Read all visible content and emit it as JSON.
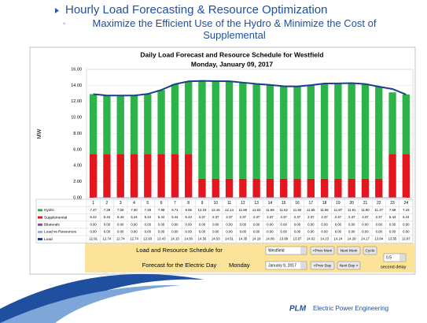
{
  "header": {
    "title": "Hourly Load Forecasting & Resource Optimization",
    "subtitle": "Maximize the Efficient Use of the Hydro & Minimize the Cost of Supplemental"
  },
  "chart_data": {
    "type": "bar",
    "title": "Daily Load Forecast and Resource Schedule for Westfield",
    "subtitle": "Monday, January 09, 2017",
    "y_label": "MW",
    "categories": [
      "1",
      "2",
      "3",
      "4",
      "5",
      "6",
      "7",
      "8",
      "9",
      "10",
      "11",
      "12",
      "13",
      "14",
      "15",
      "16",
      "17",
      "18",
      "19",
      "20",
      "21",
      "22",
      "23",
      "24"
    ],
    "ylim": [
      0,
      16
    ],
    "yticks": [
      {
        "value": 0,
        "label": "0.00"
      },
      {
        "value": 2,
        "label": "2.00"
      },
      {
        "value": 4,
        "label": "4.00"
      },
      {
        "value": 6,
        "label": "6.00"
      },
      {
        "value": 8,
        "label": "8.00"
      },
      {
        "value": 10,
        "label": "10.00"
      },
      {
        "value": 12,
        "label": "12.00"
      },
      {
        "value": 14,
        "label": "14.00"
      },
      {
        "value": 16,
        "label": "16.00"
      }
    ],
    "grid": true,
    "series": [
      {
        "name": "Hydro",
        "mark": "bar",
        "color": "#2db34a",
        "values": [
          7.47,
          7.29,
          7.26,
          7.3,
          7.48,
          7.98,
          8.71,
          9.06,
          12.19,
          12.16,
          12.14,
          11.98,
          11.81,
          11.69,
          11.52,
          11.5,
          11.65,
          11.86,
          11.87,
          11.91,
          11.8,
          11.47,
          7.69,
          7.43
        ],
        "value_labels": [
          "7.47",
          "7.29",
          "7.26",
          "7.30",
          "7.48",
          "7.98",
          "8.71",
          "9.06",
          "12.19",
          "12.16",
          "12.14",
          "11.98",
          "11.81",
          "11.69",
          "11.52",
          "11.50",
          "11.65",
          "11.86",
          "11.87",
          "11.91",
          "11.80",
          "11.47",
          "7.69",
          "7.43"
        ]
      },
      {
        "name": "Supplemental",
        "mark": "bar",
        "color": "#e3161d",
        "values": [
          5.44,
          5.44,
          5.44,
          5.44,
          5.44,
          5.44,
          5.44,
          5.44,
          2.37,
          2.37,
          2.37,
          2.37,
          2.37,
          2.37,
          2.37,
          2.37,
          2.37,
          2.37,
          2.37,
          2.37,
          2.37,
          2.37,
          5.44,
          5.44
        ],
        "value_labels": [
          "5.44",
          "5.44",
          "5.44",
          "5.44",
          "5.44",
          "5.44",
          "5.44",
          "5.44",
          "2.37",
          "2.37",
          "2.37",
          "2.37",
          "2.37",
          "2.37",
          "2.37",
          "2.37",
          "2.37",
          "2.37",
          "2.37",
          "2.37",
          "2.37",
          "2.37",
          "5.44",
          "5.44"
        ]
      },
      {
        "name": "Bilaterals",
        "mark": "line",
        "color": "#7a4fa0",
        "values": [
          0,
          0,
          0,
          0,
          0,
          0,
          0,
          0,
          0,
          0,
          0,
          0,
          0,
          0,
          0,
          0,
          0,
          0,
          0,
          0,
          0,
          0,
          0,
          0
        ],
        "value_labels": [
          "0.00",
          "0.00",
          "0.00",
          "0.00",
          "0.00",
          "0.00",
          "0.00",
          "0.00",
          "0.00",
          "0.00",
          "0.00",
          "0.00",
          "0.00",
          "0.00",
          "0.00",
          "0.00",
          "0.00",
          "0.00",
          "0.00",
          "0.00",
          "0.00",
          "0.00",
          "0.00",
          "0.00"
        ]
      },
      {
        "name": "Load vs Resources",
        "mark": "line",
        "color": "#8ab4e0",
        "values": [
          0,
          0,
          0,
          0,
          0,
          0,
          0,
          0,
          0,
          0,
          0,
          0,
          0,
          0,
          0,
          0,
          0,
          0,
          0,
          0,
          0,
          0,
          0,
          0
        ],
        "value_labels": [
          "0.00",
          "0.00",
          "0.00",
          "0.00",
          "0.00",
          "0.00",
          "0.00",
          "0.00",
          "0.00",
          "0.00",
          "0.00",
          "0.00",
          "0.00",
          "0.00",
          "0.00",
          "0.00",
          "0.00",
          "0.00",
          "0.00",
          "0.00",
          "0.00",
          "0.00",
          "0.00",
          "0.00"
        ]
      },
      {
        "name": "Load",
        "mark": "line",
        "color": "#1d3f8a",
        "values": [
          12.91,
          12.74,
          12.74,
          12.74,
          12.93,
          13.43,
          14.15,
          14.5,
          14.56,
          14.53,
          14.51,
          14.35,
          14.18,
          14.06,
          13.89,
          13.87,
          14.02,
          14.23,
          14.24,
          14.28,
          14.17,
          13.84,
          13.55,
          12.87
        ],
        "value_labels": [
          "12.91",
          "12.74",
          "12.74",
          "12.74",
          "12.93",
          "13.43",
          "14.15",
          "14.50",
          "14.56",
          "14.53",
          "14.51",
          "14.35",
          "14.18",
          "14.06",
          "13.89",
          "13.87",
          "14.02",
          "14.23",
          "14.24",
          "14.28",
          "14.17",
          "13.84",
          "13.55",
          "12.87"
        ]
      }
    ]
  },
  "controls": {
    "schedule_label": "Load and Resource Schedule for",
    "muni": "Westfield",
    "prev_muni": "<Prev Muni",
    "next_muni": "Next Muni",
    "cycle": "Cycle",
    "forecast_label": "Forecast for the Electric Day",
    "weekday": "Monday",
    "date": "January 9, 2017",
    "prev_day": "<Prev Day",
    "next_day": "Next Day >",
    "delay": "0.5",
    "delay_label": "second delay"
  },
  "footer": {
    "logo": "PLM",
    "company": "Electric Power Engineering"
  }
}
